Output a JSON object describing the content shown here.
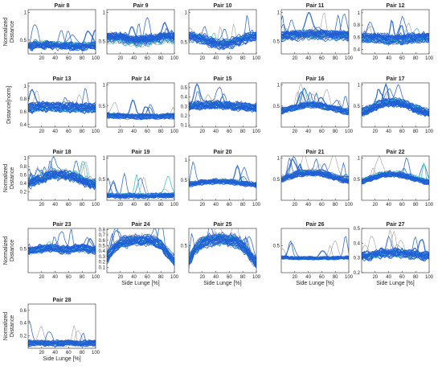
{
  "chart_data": {
    "type": "line",
    "x_range": [
      0,
      100
    ],
    "x_ticks": [
      20,
      40,
      60,
      80,
      100
    ],
    "x_tick_labels": [
      "20",
      "40",
      "60",
      "80",
      "100"
    ],
    "grid": false,
    "legend": "none",
    "colors": {
      "highlight": "#1f5fd6",
      "background": "#808080",
      "accent": "#2ec4c4"
    },
    "panels": [
      {
        "title": "Pair 8",
        "ylabel": "Normalized\nDistance",
        "xlabel": "",
        "ylim": [
          0.25,
          1.05
        ],
        "yticks": [
          0.5,
          1
        ],
        "ytick_labels": [
          "0.5",
          "1"
        ],
        "median": [
          0.4,
          0.41,
          0.42,
          0.42,
          0.41,
          0.4,
          0.4,
          0.39,
          0.39,
          0.4,
          0.41
        ],
        "spread": 0.05
      },
      {
        "title": "Pair 9",
        "ylabel": "",
        "xlabel": "",
        "ylim": [
          0.28,
          1.05
        ],
        "yticks": [
          0.5,
          1
        ],
        "ytick_labels": [
          "0.5",
          "1"
        ],
        "median": [
          0.55,
          0.56,
          0.55,
          0.52,
          0.5,
          0.5,
          0.51,
          0.53,
          0.55,
          0.56,
          0.56
        ],
        "spread": 0.07
      },
      {
        "title": "Pair 10",
        "ylabel": "",
        "xlabel": "",
        "ylim": [
          0.3,
          1.05
        ],
        "yticks": [
          0.5,
          1
        ],
        "ytick_labels": [
          "0.5",
          "1"
        ],
        "median": [
          0.6,
          0.58,
          0.54,
          0.5,
          0.47,
          0.46,
          0.47,
          0.5,
          0.54,
          0.58,
          0.6
        ],
        "spread": 0.06
      },
      {
        "title": "Pair 11",
        "ylabel": "",
        "xlabel": "",
        "ylim": [
          0.28,
          1.05
        ],
        "yticks": [
          0.5,
          1
        ],
        "ytick_labels": [
          "0.5",
          "1"
        ],
        "median": [
          0.58,
          0.59,
          0.6,
          0.61,
          0.61,
          0.61,
          0.61,
          0.6,
          0.6,
          0.59,
          0.59
        ],
        "spread": 0.06
      },
      {
        "title": "Pair 12",
        "ylabel": "",
        "xlabel": "",
        "ylim": [
          0.33,
          1.05
        ],
        "yticks": [
          0.4,
          0.6,
          0.8,
          1
        ],
        "ytick_labels": [
          "0.4",
          "0.6",
          "0.8",
          "1"
        ],
        "median": [
          0.6,
          0.6,
          0.59,
          0.58,
          0.57,
          0.57,
          0.57,
          0.58,
          0.59,
          0.6,
          0.6
        ],
        "spread": 0.06
      },
      {
        "title": "Pair 13",
        "ylabel": "Distance[norm]",
        "xlabel": "",
        "ylim": [
          0.36,
          1.05
        ],
        "yticks": [
          0.4,
          0.6,
          0.8,
          1
        ],
        "ytick_labels": [
          "0.4",
          "0.6",
          "0.8",
          "1"
        ],
        "median": [
          0.66,
          0.67,
          0.68,
          0.68,
          0.68,
          0.67,
          0.67,
          0.67,
          0.66,
          0.66,
          0.66
        ],
        "spread": 0.05
      },
      {
        "title": "Pair 14",
        "ylabel": "",
        "xlabel": "",
        "ylim": [
          0.0,
          1.05
        ],
        "yticks": [
          0.5,
          1
        ],
        "ytick_labels": [
          "0.5",
          "1"
        ],
        "median": [
          0.28,
          0.27,
          0.26,
          0.25,
          0.25,
          0.25,
          0.25,
          0.25,
          0.25,
          0.26,
          0.26
        ],
        "spread": 0.04
      },
      {
        "title": "Pair 15",
        "ylabel": "",
        "xlabel": "",
        "ylim": [
          0.08,
          0.55
        ],
        "yticks": [
          0.1,
          0.2,
          0.3,
          0.4,
          0.5
        ],
        "ytick_labels": [
          "0.1",
          "0.2",
          "0.3",
          "0.4",
          "0.5"
        ],
        "median": [
          0.3,
          0.31,
          0.31,
          0.32,
          0.32,
          0.31,
          0.31,
          0.3,
          0.3,
          0.29,
          0.29
        ],
        "spread": 0.03
      },
      {
        "title": "Pair 16",
        "ylabel": "",
        "xlabel": "",
        "ylim": [
          0.0,
          1.05
        ],
        "yticks": [
          0.5,
          1
        ],
        "ytick_labels": [
          "0.5",
          "1"
        ],
        "median": [
          0.38,
          0.42,
          0.47,
          0.51,
          0.53,
          0.53,
          0.51,
          0.47,
          0.43,
          0.39,
          0.37
        ],
        "spread": 0.05
      },
      {
        "title": "Pair 17",
        "ylabel": "",
        "xlabel": "",
        "ylim": [
          0.0,
          1.05
        ],
        "yticks": [
          0.5,
          1
        ],
        "ytick_labels": [
          "0.5",
          "1"
        ],
        "median": [
          0.35,
          0.42,
          0.5,
          0.56,
          0.59,
          0.6,
          0.57,
          0.51,
          0.44,
          0.38,
          0.35
        ],
        "spread": 0.07
      },
      {
        "title": "Pair 18",
        "ylabel": "Normalized\nDistance",
        "xlabel": "",
        "ylim": [
          0.0,
          1.05
        ],
        "yticks": [
          0.2,
          0.4,
          0.6,
          0.8,
          1
        ],
        "ytick_labels": [
          "0.2",
          "0.4",
          "0.6",
          "0.8",
          "1"
        ],
        "median": [
          0.4,
          0.46,
          0.53,
          0.59,
          0.62,
          0.62,
          0.6,
          0.55,
          0.48,
          0.42,
          0.39
        ],
        "spread": 0.08
      },
      {
        "title": "Pair 19",
        "ylabel": "",
        "xlabel": "",
        "ylim": [
          0.0,
          1.05
        ],
        "yticks": [
          0.5,
          1
        ],
        "ytick_labels": [
          "0.5",
          "1"
        ],
        "median": [
          0.12,
          0.12,
          0.11,
          0.11,
          0.11,
          0.11,
          0.11,
          0.11,
          0.12,
          0.12,
          0.12
        ],
        "spread": 0.04
      },
      {
        "title": "Pair 20",
        "ylabel": "",
        "xlabel": "",
        "ylim": [
          0.0,
          1.1
        ],
        "yticks": [
          0.5,
          1
        ],
        "ytick_labels": [
          "0.5",
          "1"
        ],
        "median": [
          0.4,
          0.42,
          0.45,
          0.46,
          0.47,
          0.47,
          0.46,
          0.44,
          0.42,
          0.4,
          0.39
        ],
        "spread": 0.04
      },
      {
        "title": "Pair 21",
        "ylabel": "",
        "xlabel": "",
        "ylim": [
          0.0,
          1.05
        ],
        "yticks": [
          0.5,
          1
        ],
        "ytick_labels": [
          "0.5",
          "1"
        ],
        "median": [
          0.5,
          0.56,
          0.61,
          0.64,
          0.66,
          0.66,
          0.64,
          0.6,
          0.55,
          0.5,
          0.47
        ],
        "spread": 0.05
      },
      {
        "title": "Pair 22",
        "ylabel": "",
        "xlabel": "",
        "ylim": [
          0.0,
          1.05
        ],
        "yticks": [
          0.5,
          1
        ],
        "ytick_labels": [
          "0.5",
          "1"
        ],
        "median": [
          0.45,
          0.51,
          0.57,
          0.61,
          0.63,
          0.63,
          0.61,
          0.57,
          0.52,
          0.47,
          0.44
        ],
        "spread": 0.05
      },
      {
        "title": "Pair 23",
        "ylabel": "Normalized\nDistance",
        "xlabel": "",
        "ylim": [
          0.15,
          0.8
        ],
        "yticks": [
          0.5
        ],
        "ytick_labels": [
          "0.5"
        ],
        "median": [
          0.46,
          0.48,
          0.5,
          0.51,
          0.5,
          0.48,
          0.48,
          0.5,
          0.51,
          0.49,
          0.47
        ],
        "spread": 0.04
      },
      {
        "title": "Pair 24",
        "ylabel": "",
        "xlabel": "Side Lunge [%]",
        "ylim": [
          0.0,
          0.82
        ],
        "yticks": [
          0.1,
          0.2,
          0.3,
          0.4,
          0.5,
          0.6,
          0.7,
          0.8
        ],
        "ytick_labels": [
          "0.1",
          "0.2",
          "0.3",
          "0.4",
          "0.5",
          "0.6",
          "0.7",
          "0.8"
        ],
        "median": [
          0.28,
          0.45,
          0.55,
          0.58,
          0.6,
          0.6,
          0.6,
          0.58,
          0.52,
          0.35,
          0.22
        ],
        "spread": 0.07
      },
      {
        "title": "Pair 25",
        "ylabel": "",
        "xlabel": "Side Lunge [%]",
        "ylim": [
          0.0,
          0.82
        ],
        "yticks": [
          0.5
        ],
        "ytick_labels": [
          "0.5"
        ],
        "median": [
          0.22,
          0.45,
          0.56,
          0.6,
          0.62,
          0.62,
          0.61,
          0.58,
          0.5,
          0.32,
          0.2
        ],
        "spread": 0.08
      },
      {
        "title": "Pair 26",
        "ylabel": "",
        "xlabel": "Side Lunge [%]",
        "ylim": [
          0.0,
          0.82
        ],
        "yticks": [
          0.5
        ],
        "ytick_labels": [
          "0.5"
        ],
        "median": [
          0.28,
          0.28,
          0.27,
          0.27,
          0.27,
          0.27,
          0.27,
          0.27,
          0.27,
          0.28,
          0.28
        ],
        "spread": 0.02
      },
      {
        "title": "Pair 27",
        "ylabel": "",
        "xlabel": "Side Lunge [%]",
        "ylim": [
          0.2,
          0.5
        ],
        "yticks": [
          0.2,
          0.3,
          0.4,
          0.5
        ],
        "ytick_labels": [
          "0.2",
          "0.3",
          "0.4",
          "0.5"
        ],
        "median": [
          0.31,
          0.31,
          0.32,
          0.33,
          0.33,
          0.33,
          0.33,
          0.32,
          0.32,
          0.31,
          0.31
        ],
        "spread": 0.02
      },
      {
        "title": "Pair 28",
        "ylabel": "Normalized\nDistance",
        "xlabel": "Side Lunge [%]",
        "ylim": [
          0.0,
          0.7
        ],
        "yticks": [
          0.2,
          0.4,
          0.6
        ],
        "ytick_labels": [
          "0.2",
          "0.4",
          "0.6"
        ],
        "median": [
          0.08,
          0.08,
          0.08,
          0.08,
          0.08,
          0.08,
          0.08,
          0.08,
          0.08,
          0.08,
          0.08
        ],
        "spread": 0.03
      }
    ]
  }
}
